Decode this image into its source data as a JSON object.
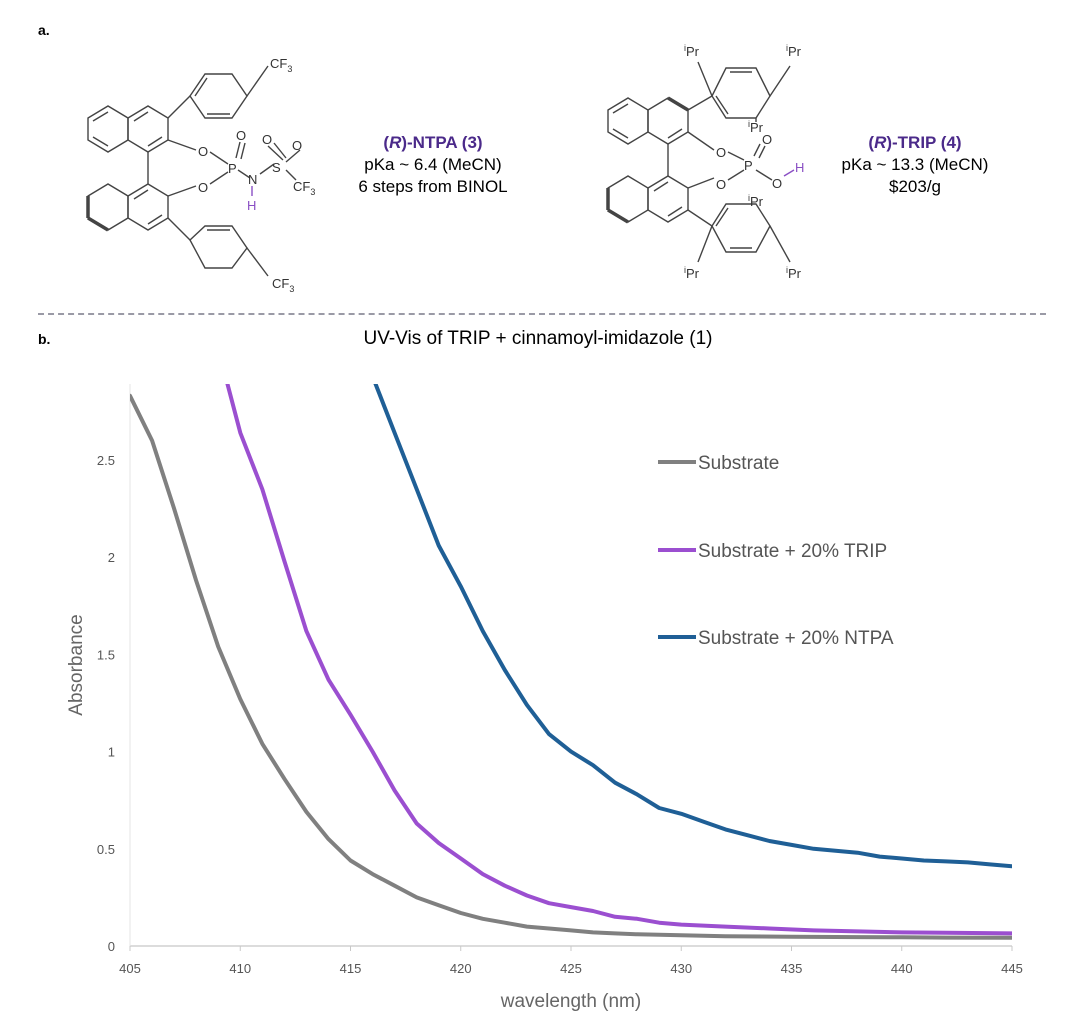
{
  "panel_a_label": "a.",
  "panel_b_label": "b.",
  "molecule_left": {
    "name_prefix": "(",
    "name_italic": "R",
    "name_suffix": ")-NTPA (3)",
    "line2": "pKa ~ 6.4 (MeCN)",
    "line3": "6 steps from BINOL"
  },
  "molecule_right": {
    "name_prefix": "(",
    "name_italic": "R",
    "name_suffix": ")-TRIP (4)",
    "line2": "pKa ~ 13.3 (MeCN)",
    "line3": "$203/g"
  },
  "structure_labels": {
    "cf3_main": "CF",
    "cf3_sub": "3",
    "o": "O",
    "p": "P",
    "n": "N",
    "s": "S",
    "h": "H",
    "ipr_sup": "i",
    "ipr_main": "Pr"
  },
  "colors": {
    "substrate": "#808080",
    "trip": "#9b4fd0",
    "ntpa": "#1f5f96",
    "accent": "#4b2a8a"
  },
  "chart_data": {
    "type": "line",
    "title": "UV-Vis of TRIP + cinnamoyl-imidazole (1)",
    "xlabel": "wavelength (nm)",
    "ylabel": "Absorbance",
    "xlim": [
      405,
      445
    ],
    "ylim": [
      0,
      2.9
    ],
    "x_ticks": [
      "405",
      "410",
      "415",
      "420",
      "425",
      "430",
      "435",
      "440",
      "445"
    ],
    "y_ticks": [
      "0",
      "0.5",
      "1",
      "1.5",
      "2",
      "2.5"
    ],
    "grid": false,
    "legend_position": "top-right",
    "series": [
      {
        "name": "Substrate",
        "color": "#808080",
        "points": [
          [
            405,
            2.83
          ],
          [
            406,
            2.6
          ],
          [
            407,
            2.25
          ],
          [
            408,
            1.88
          ],
          [
            409,
            1.54
          ],
          [
            410,
            1.27
          ],
          [
            411,
            1.04
          ],
          [
            412,
            0.86
          ],
          [
            413,
            0.69
          ],
          [
            414,
            0.55
          ],
          [
            415,
            0.44
          ],
          [
            416,
            0.37
          ],
          [
            417,
            0.31
          ],
          [
            418,
            0.25
          ],
          [
            419,
            0.21
          ],
          [
            420,
            0.17
          ],
          [
            421,
            0.14
          ],
          [
            422,
            0.12
          ],
          [
            423,
            0.1
          ],
          [
            424,
            0.09
          ],
          [
            425,
            0.08
          ],
          [
            426,
            0.07
          ],
          [
            427,
            0.065
          ],
          [
            428,
            0.06
          ],
          [
            430,
            0.055
          ],
          [
            432,
            0.05
          ],
          [
            435,
            0.048
          ],
          [
            438,
            0.046
          ],
          [
            440,
            0.045
          ],
          [
            442,
            0.043
          ],
          [
            445,
            0.042
          ]
        ]
      },
      {
        "name": "Substrate + 20% TRIP",
        "color": "#9b4fd0",
        "points": [
          [
            409.4,
            2.9
          ],
          [
            410,
            2.64
          ],
          [
            411,
            2.35
          ],
          [
            412,
            1.98
          ],
          [
            413,
            1.62
          ],
          [
            414,
            1.37
          ],
          [
            415,
            1.19
          ],
          [
            416,
            1.0
          ],
          [
            417,
            0.8
          ],
          [
            418,
            0.63
          ],
          [
            419,
            0.53
          ],
          [
            420,
            0.45
          ],
          [
            421,
            0.37
          ],
          [
            422,
            0.31
          ],
          [
            423,
            0.26
          ],
          [
            424,
            0.22
          ],
          [
            425,
            0.2
          ],
          [
            426,
            0.18
          ],
          [
            427,
            0.15
          ],
          [
            428,
            0.14
          ],
          [
            429,
            0.12
          ],
          [
            430,
            0.11
          ],
          [
            432,
            0.1
          ],
          [
            434,
            0.09
          ],
          [
            436,
            0.08
          ],
          [
            438,
            0.075
          ],
          [
            440,
            0.07
          ],
          [
            442,
            0.068
          ],
          [
            445,
            0.065
          ]
        ]
      },
      {
        "name": "Substrate + 20% NTPA",
        "color": "#1f5f96",
        "points": [
          [
            416,
            2.93
          ],
          [
            417,
            2.64
          ],
          [
            418,
            2.35
          ],
          [
            419,
            2.06
          ],
          [
            420,
            1.85
          ],
          [
            421,
            1.62
          ],
          [
            422,
            1.42
          ],
          [
            423,
            1.24
          ],
          [
            424,
            1.09
          ],
          [
            425,
            1.0
          ],
          [
            426,
            0.93
          ],
          [
            427,
            0.84
          ],
          [
            428,
            0.78
          ],
          [
            429,
            0.71
          ],
          [
            430,
            0.68
          ],
          [
            431,
            0.64
          ],
          [
            432,
            0.6
          ],
          [
            433,
            0.57
          ],
          [
            434,
            0.54
          ],
          [
            435,
            0.52
          ],
          [
            436,
            0.5
          ],
          [
            437,
            0.49
          ],
          [
            438,
            0.48
          ],
          [
            439,
            0.46
          ],
          [
            440,
            0.45
          ],
          [
            441,
            0.44
          ],
          [
            442,
            0.435
          ],
          [
            443,
            0.43
          ],
          [
            444,
            0.42
          ],
          [
            445,
            0.41
          ]
        ]
      }
    ]
  }
}
